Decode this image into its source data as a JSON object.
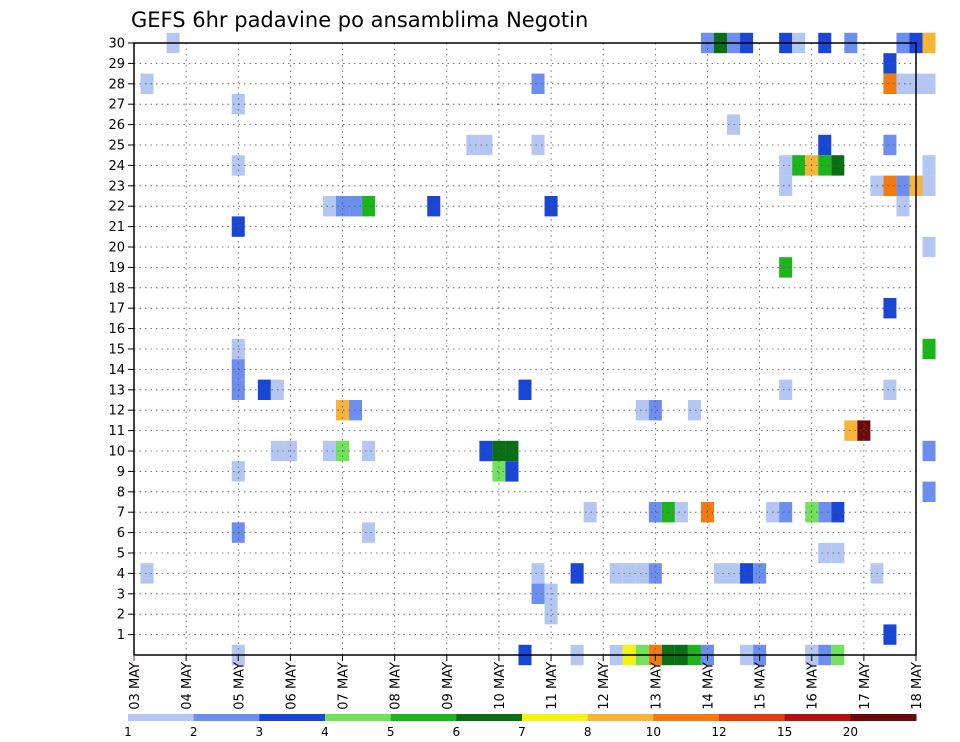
{
  "chart_data": {
    "type": "heatmap",
    "title": "GEFS 6hr padavine po ansamblima Negotin",
    "x_tick_labels": [
      "03 MAY",
      "04 MAY",
      "05 MAY",
      "06 MAY",
      "07 MAY",
      "08 MAY",
      "09 MAY",
      "10 MAY",
      "11 MAY",
      "12 MAY",
      "13 MAY",
      "14 MAY",
      "15 MAY",
      "16 MAY",
      "17 MAY",
      "18 MAY"
    ],
    "x_range_days": [
      0,
      15
    ],
    "y_tick_labels": [
      "1",
      "2",
      "3",
      "4",
      "5",
      "6",
      "7",
      "8",
      "9",
      "10",
      "11",
      "12",
      "13",
      "14",
      "15",
      "16",
      "17",
      "18",
      "19",
      "20",
      "21",
      "22",
      "23",
      "24",
      "25",
      "26",
      "27",
      "28",
      "29",
      "30"
    ],
    "y_range": [
      0,
      30
    ],
    "grid": true,
    "legend": {
      "position": "bottom",
      "labels": [
        "1",
        "2",
        "3",
        "4",
        "5",
        "6",
        "7",
        "8",
        "10",
        "12",
        "15",
        "20"
      ],
      "colors": [
        "#b4c6f2",
        "#6b8eef",
        "#1a46d6",
        "#71e25a",
        "#1bb51b",
        "#0a6e14",
        "#f5f20f",
        "#f7b437",
        "#f27a10",
        "#e03c0c",
        "#b50f0f",
        "#6a0a0a"
      ]
    },
    "cells": [
      [
        0.25,
        28,
        0
      ],
      [
        0.25,
        4,
        0
      ],
      [
        0.75,
        30,
        0
      ],
      [
        2,
        27,
        0
      ],
      [
        2,
        24,
        0
      ],
      [
        2,
        21,
        2
      ],
      [
        2,
        15,
        0
      ],
      [
        2,
        14,
        1
      ],
      [
        2,
        13,
        1
      ],
      [
        2,
        9,
        0
      ],
      [
        2,
        6,
        1
      ],
      [
        2,
        0,
        0
      ],
      [
        2.5,
        13,
        2
      ],
      [
        2.75,
        13,
        0
      ],
      [
        2.75,
        10,
        0
      ],
      [
        3,
        10,
        0
      ],
      [
        3.75,
        22,
        0
      ],
      [
        3.75,
        10,
        0
      ],
      [
        4,
        22,
        1
      ],
      [
        4,
        12,
        7
      ],
      [
        4,
        10,
        3
      ],
      [
        4.25,
        22,
        1
      ],
      [
        4.25,
        12,
        1
      ],
      [
        4.5,
        22,
        4
      ],
      [
        4.5,
        10,
        0
      ],
      [
        4.5,
        6,
        0
      ],
      [
        5.75,
        22,
        2
      ],
      [
        6.5,
        25,
        0
      ],
      [
        6.75,
        25,
        0
      ],
      [
        6.75,
        10,
        2
      ],
      [
        7,
        10,
        5
      ],
      [
        7.25,
        10,
        5
      ],
      [
        7,
        9,
        3
      ],
      [
        7.25,
        9,
        2
      ],
      [
        7.5,
        13,
        2
      ],
      [
        7.5,
        0,
        2
      ],
      [
        7.75,
        28,
        1
      ],
      [
        7.75,
        25,
        0
      ],
      [
        7.75,
        4,
        0
      ],
      [
        7.75,
        3,
        1
      ],
      [
        8,
        3,
        0
      ],
      [
        8,
        2,
        0
      ],
      [
        8,
        22,
        2
      ],
      [
        8.5,
        4,
        2
      ],
      [
        8.5,
        0,
        0
      ],
      [
        8.75,
        7,
        0
      ],
      [
        9.25,
        4,
        0
      ],
      [
        9.25,
        0,
        0
      ],
      [
        9.5,
        4,
        0
      ],
      [
        9.5,
        0,
        6
      ],
      [
        9.75,
        4,
        0
      ],
      [
        9.75,
        12,
        0
      ],
      [
        9.75,
        0,
        3
      ],
      [
        10,
        12,
        1
      ],
      [
        10,
        7,
        1
      ],
      [
        10,
        4,
        1
      ],
      [
        10,
        0,
        8
      ],
      [
        10.25,
        7,
        4
      ],
      [
        10.25,
        0,
        5
      ],
      [
        10.5,
        7,
        0
      ],
      [
        10.5,
        0,
        5
      ],
      [
        10.75,
        12,
        0
      ],
      [
        10.75,
        0,
        4
      ],
      [
        11,
        7,
        8
      ],
      [
        11,
        0,
        1
      ],
      [
        11,
        30,
        1
      ],
      [
        11.25,
        30,
        5
      ],
      [
        11.5,
        30,
        1
      ],
      [
        11.75,
        30,
        2
      ],
      [
        11.5,
        26,
        0
      ],
      [
        11.25,
        4,
        0
      ],
      [
        11.5,
        4,
        0
      ],
      [
        11.75,
        4,
        2
      ],
      [
        12,
        4,
        1
      ],
      [
        11.75,
        0,
        0
      ],
      [
        12,
        0,
        1
      ],
      [
        12.5,
        30,
        2
      ],
      [
        12.75,
        30,
        0
      ],
      [
        12.5,
        24,
        0
      ],
      [
        12.5,
        23,
        0
      ],
      [
        12.5,
        19,
        4
      ],
      [
        12.5,
        13,
        0
      ],
      [
        12.25,
        7,
        0
      ],
      [
        12.5,
        7,
        1
      ],
      [
        12.75,
        24,
        4
      ],
      [
        13,
        24,
        7
      ],
      [
        13.25,
        24,
        4
      ],
      [
        13.5,
        24,
        5
      ],
      [
        13.25,
        25,
        2
      ],
      [
        13.25,
        30,
        2
      ],
      [
        13.25,
        7,
        1
      ],
      [
        13,
        7,
        3
      ],
      [
        13.5,
        7,
        2
      ],
      [
        13.25,
        5,
        0
      ],
      [
        13.5,
        5,
        0
      ],
      [
        13,
        0,
        0
      ],
      [
        13.25,
        0,
        1
      ],
      [
        13.5,
        0,
        3
      ],
      [
        13.75,
        11,
        7
      ],
      [
        14,
        11,
        11
      ],
      [
        13.75,
        30,
        1
      ],
      [
        14.25,
        23,
        0
      ],
      [
        14.25,
        4,
        0
      ],
      [
        14.5,
        29,
        2
      ],
      [
        14.5,
        28,
        8
      ],
      [
        14.5,
        25,
        1
      ],
      [
        14.5,
        23,
        8
      ],
      [
        14.5,
        17,
        2
      ],
      [
        14.5,
        13,
        0
      ],
      [
        14.5,
        1,
        2
      ],
      [
        14.75,
        28,
        0
      ],
      [
        15,
        28,
        0
      ],
      [
        14.75,
        23,
        1
      ],
      [
        14.75,
        22,
        0
      ],
      [
        15,
        23,
        7
      ],
      [
        14.75,
        30,
        1
      ],
      [
        15,
        30,
        2
      ],
      [
        15.25,
        30,
        7
      ],
      [
        15.25,
        28,
        0
      ],
      [
        15.25,
        24,
        0
      ],
      [
        15.25,
        23,
        0
      ],
      [
        15.25,
        20,
        0
      ],
      [
        15.25,
        15,
        4
      ],
      [
        15.25,
        10,
        1
      ],
      [
        15.25,
        8,
        1
      ]
    ]
  }
}
